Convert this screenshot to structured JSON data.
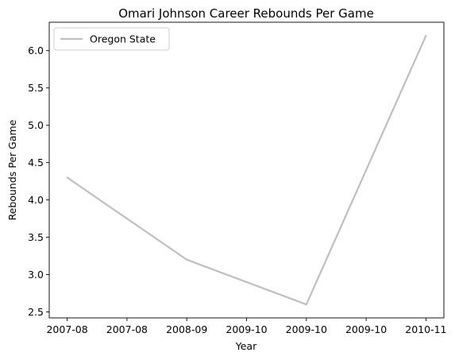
{
  "chart_data": {
    "type": "line",
    "title": "Omari Johnson Career Rebounds Per Game",
    "xlabel": "Year",
    "ylabel": "Rebounds Per Game",
    "x_tick_labels": [
      "2007-08",
      "2007-08",
      "2008-09",
      "2009-10",
      "2009-10",
      "2009-10",
      "2010-11"
    ],
    "y_ticks": [
      2.5,
      3.0,
      3.5,
      4.0,
      4.5,
      5.0,
      5.5,
      6.0
    ],
    "y_tick_labels": [
      "2.5",
      "3.0",
      "3.5",
      "4.0",
      "4.5",
      "5.0",
      "5.5",
      "6.0"
    ],
    "ylim": [
      2.42,
      6.38
    ],
    "xlim": [
      -0.15,
      3.15
    ],
    "grid": false,
    "legend_position": "top-left",
    "x_categories": [
      "2007-08",
      "2008-09",
      "2009-10",
      "2010-11"
    ],
    "series": [
      {
        "name": "Oregon State",
        "color": "#bfbfbf",
        "x": [
          0,
          1,
          2,
          3
        ],
        "values": [
          4.3,
          3.2,
          2.6,
          6.2
        ]
      }
    ]
  }
}
